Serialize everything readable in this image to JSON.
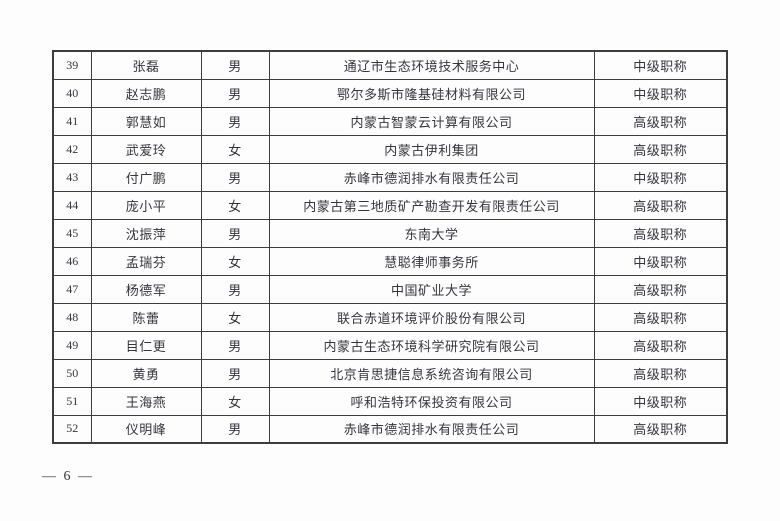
{
  "page": {
    "footer_page_number": "— 6 —"
  },
  "colors": {
    "text": "#35353f",
    "border": "#3d3d3d",
    "background": "#fdfdfd"
  },
  "table": {
    "rows": [
      {
        "no": "39",
        "name": "张磊",
        "gender": "男",
        "organization": "通辽市生态环境技术服务中心",
        "title": "中级职称"
      },
      {
        "no": "40",
        "name": "赵志鹏",
        "gender": "男",
        "organization": "鄂尔多斯市隆基硅材料有限公司",
        "title": "中级职称"
      },
      {
        "no": "41",
        "name": "郭慧如",
        "gender": "男",
        "organization": "内蒙古智蒙云计算有限公司",
        "title": "高级职称"
      },
      {
        "no": "42",
        "name": "武爱玲",
        "gender": "女",
        "organization": "内蒙古伊利集团",
        "title": "高级职称"
      },
      {
        "no": "43",
        "name": "付广鹏",
        "gender": "男",
        "organization": "赤峰市德润排水有限责任公司",
        "title": "中级职称"
      },
      {
        "no": "44",
        "name": "庞小平",
        "gender": "女",
        "organization": "内蒙古第三地质矿产勘查开发有限责任公司",
        "title": "高级职称"
      },
      {
        "no": "45",
        "name": "沈振萍",
        "gender": "男",
        "organization": "东南大学",
        "title": "高级职称"
      },
      {
        "no": "46",
        "name": "孟瑞芬",
        "gender": "女",
        "organization": "慧聪律师事务所",
        "title": "中级职称"
      },
      {
        "no": "47",
        "name": "杨德军",
        "gender": "男",
        "organization": "中国矿业大学",
        "title": "高级职称"
      },
      {
        "no": "48",
        "name": "陈蕾",
        "gender": "女",
        "organization": "联合赤道环境评价股份有限公司",
        "title": "高级职称"
      },
      {
        "no": "49",
        "name": "目仁更",
        "gender": "男",
        "organization": "内蒙古生态环境科学研究院有限公司",
        "title": "高级职称"
      },
      {
        "no": "50",
        "name": "黄勇",
        "gender": "男",
        "organization": "北京肯思捷信息系统咨询有限公司",
        "title": "高级职称"
      },
      {
        "no": "51",
        "name": "王海燕",
        "gender": "女",
        "organization": "呼和浩特环保投资有限公司",
        "title": "中级职称"
      },
      {
        "no": "52",
        "name": "仪明峰",
        "gender": "男",
        "organization": "赤峰市德润排水有限责任公司",
        "title": "高级职称"
      }
    ]
  }
}
